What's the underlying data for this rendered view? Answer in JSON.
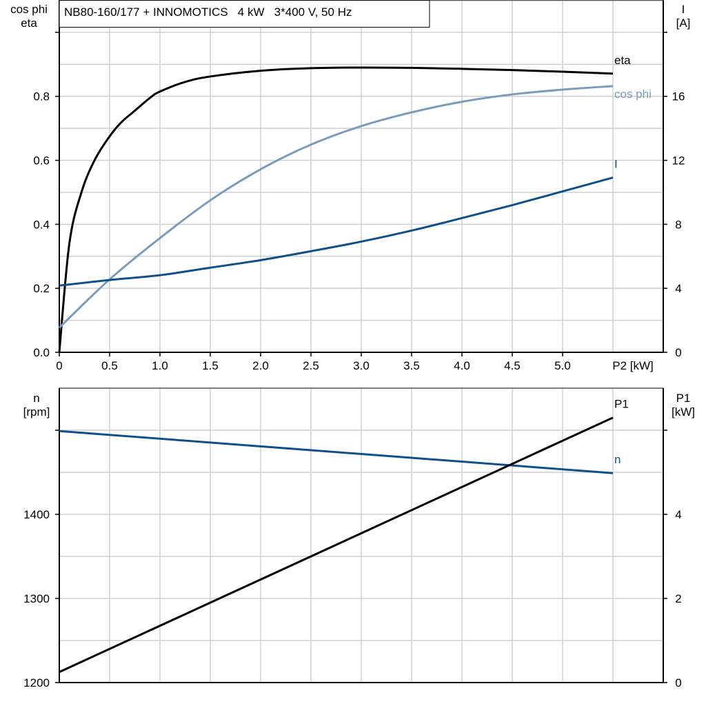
{
  "title": "NB80-160/177 + INNOMOTICS   4 kW   3*400 V, 50 Hz",
  "chart_data": [
    {
      "type": "line",
      "xlabel": "P2 [kW]",
      "ylabel_left": [
        "cos phi",
        "eta"
      ],
      "ylabel_right": [
        "I",
        "[A]"
      ],
      "xlim": [
        0,
        6
      ],
      "ylim_left": [
        0,
        1.1
      ],
      "ylim_right": [
        0,
        22
      ],
      "xticks": [
        "0",
        "0.5",
        "1.0",
        "1.5",
        "2.0",
        "2.5",
        "3.0",
        "3.5",
        "4.0",
        "4.5",
        "5.0"
      ],
      "xtick_values": [
        0,
        0.5,
        1,
        1.5,
        2,
        2.5,
        3,
        3.5,
        4,
        4.5,
        5
      ],
      "yticks_left": [
        "0.0",
        "0.2",
        "0.4",
        "0.6",
        "0.8"
      ],
      "ytick_values_left": [
        0,
        0.2,
        0.4,
        0.6,
        0.8
      ],
      "yticks_right": [
        "0",
        "4",
        "8",
        "12",
        "16"
      ],
      "ytick_values_right": [
        0,
        4,
        8,
        12,
        16
      ],
      "grid": true,
      "series": [
        {
          "name": "eta",
          "axis": "left",
          "color": "#000000",
          "x": [
            0,
            0.1,
            0.22,
            0.35,
            0.5,
            0.62,
            0.75,
            0.9,
            1.0,
            1.25,
            1.5,
            2.0,
            2.5,
            3.0,
            3.5,
            4.0,
            4.5,
            5.0,
            5.5
          ],
          "y": [
            0,
            0.34,
            0.5,
            0.6,
            0.675,
            0.72,
            0.755,
            0.795,
            0.815,
            0.845,
            0.862,
            0.88,
            0.888,
            0.89,
            0.889,
            0.886,
            0.882,
            0.877,
            0.871
          ]
        },
        {
          "name": "cos phi",
          "axis": "left",
          "color": "#7a9cbc",
          "x": [
            0,
            0.5,
            1.0,
            1.5,
            2.0,
            2.5,
            3.0,
            3.5,
            4.0,
            4.5,
            5.0,
            5.5
          ],
          "y": [
            0.077,
            0.228,
            0.357,
            0.475,
            0.572,
            0.649,
            0.707,
            0.75,
            0.783,
            0.806,
            0.821,
            0.832
          ]
        },
        {
          "name": "I",
          "axis": "right",
          "color": "#0f4f8a",
          "x": [
            0,
            0.5,
            1.0,
            1.5,
            2.0,
            2.5,
            3.0,
            3.5,
            4.0,
            4.5,
            5.0,
            5.5
          ],
          "y": [
            4.17,
            4.52,
            4.82,
            5.29,
            5.76,
            6.32,
            6.92,
            7.61,
            8.39,
            9.2,
            10.06,
            10.92
          ]
        }
      ]
    },
    {
      "type": "line",
      "ylabel_left": [
        "n",
        "[rpm]"
      ],
      "ylabel_right": [
        "P1",
        "[kW]"
      ],
      "xlim": [
        0,
        6
      ],
      "ylim_left": [
        1200,
        1550
      ],
      "ylim_right": [
        0,
        7
      ],
      "yticks_left": [
        "1200",
        "1300",
        "1400"
      ],
      "ytick_values_left": [
        1200,
        1300,
        1400
      ],
      "yticks_right": [
        "0",
        "2",
        "4"
      ],
      "ytick_values_right": [
        0,
        2,
        4
      ],
      "grid": true,
      "series": [
        {
          "name": "n",
          "axis": "left",
          "color": "#0f4f8a",
          "x": [
            0,
            5.5
          ],
          "y": [
            1499,
            1449
          ]
        },
        {
          "name": "P1",
          "axis": "right",
          "color": "#000000",
          "x": [
            0,
            5.5
          ],
          "y": [
            0.25,
            6.3
          ]
        }
      ]
    }
  ]
}
